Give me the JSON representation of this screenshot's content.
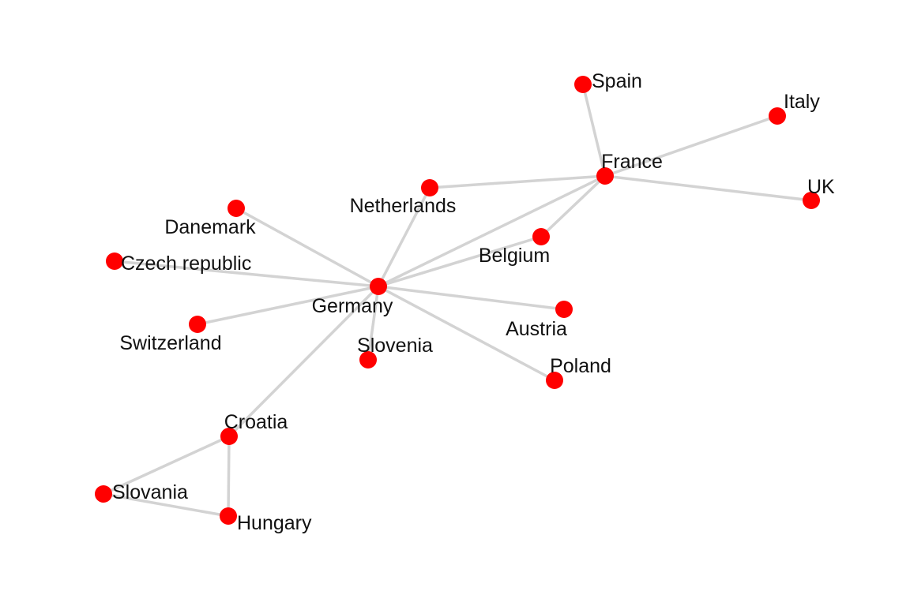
{
  "network": {
    "node_color": "#ff0000",
    "edge_color": "#d3d3d3",
    "nodes": [
      {
        "id": "germany",
        "label": "Germany"
      },
      {
        "id": "france",
        "label": "France"
      },
      {
        "id": "spain",
        "label": "Spain"
      },
      {
        "id": "italy",
        "label": "Italy"
      },
      {
        "id": "uk",
        "label": "UK"
      },
      {
        "id": "netherlands",
        "label": "Netherlands"
      },
      {
        "id": "belgium",
        "label": "Belgium"
      },
      {
        "id": "danemark",
        "label": "Danemark"
      },
      {
        "id": "czech-republic",
        "label": "Czech republic"
      },
      {
        "id": "switzerland",
        "label": "Switzerland"
      },
      {
        "id": "austria",
        "label": "Austria"
      },
      {
        "id": "slovenia",
        "label": "Slovenia"
      },
      {
        "id": "poland",
        "label": "Poland"
      },
      {
        "id": "croatia",
        "label": "Croatia"
      },
      {
        "id": "slovania",
        "label": "Slovania"
      },
      {
        "id": "hungary",
        "label": "Hungary"
      }
    ],
    "edges": [
      [
        "spain",
        "france"
      ],
      [
        "italy",
        "france"
      ],
      [
        "uk",
        "france"
      ],
      [
        "netherlands",
        "france"
      ],
      [
        "belgium",
        "france"
      ],
      [
        "germany",
        "france"
      ],
      [
        "germany",
        "netherlands"
      ],
      [
        "germany",
        "belgium"
      ],
      [
        "germany",
        "danemark"
      ],
      [
        "germany",
        "czech-republic"
      ],
      [
        "germany",
        "switzerland"
      ],
      [
        "germany",
        "austria"
      ],
      [
        "germany",
        "slovenia"
      ],
      [
        "germany",
        "poland"
      ],
      [
        "germany",
        "croatia"
      ],
      [
        "croatia",
        "slovania"
      ],
      [
        "croatia",
        "hungary"
      ],
      [
        "slovania",
        "hungary"
      ]
    ]
  }
}
